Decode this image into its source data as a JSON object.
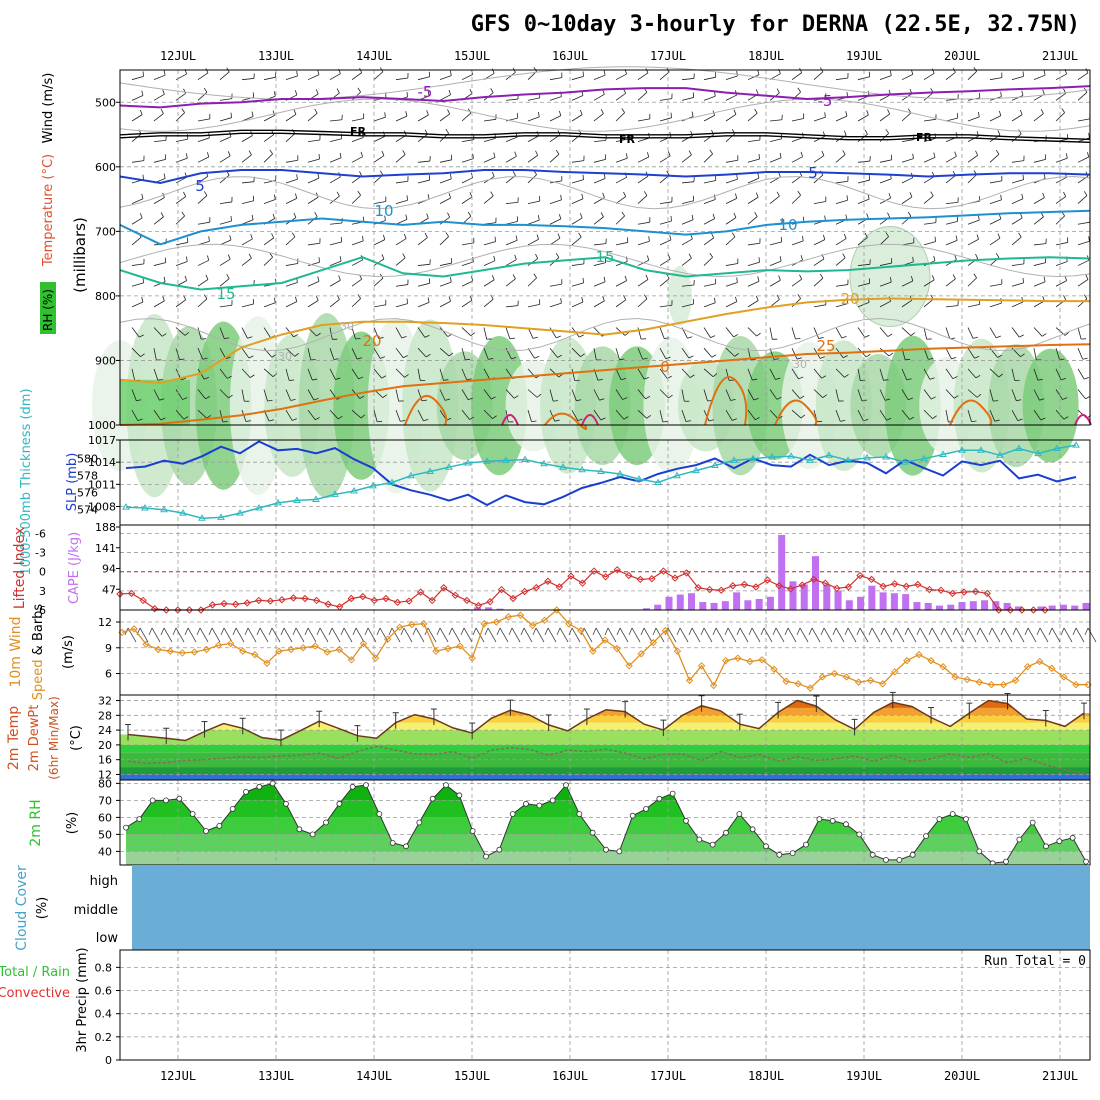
{
  "title": "GFS 0~10day 3-hourly for DERNA (22.5E, 32.75N)",
  "colors": {
    "grid": "#9a9a9a",
    "temp_colors": [
      "#8b1fb0",
      "#000000",
      "#1f3fd0",
      "#1e90d0",
      "#20b890",
      "#e0a020",
      "#e07010",
      "#d0207a"
    ],
    "slp": "#1a3fd0",
    "thickness": "#30b8c0",
    "lifted_index": "#d03030",
    "cape": "#c070f0",
    "wind10m": "#e09020",
    "rh_fill": "#30c030",
    "cloud": "#6aaed8",
    "temp_fill": "#f09020"
  },
  "chart_data": [
    {
      "type": "line",
      "panel": "pressure-level cross section",
      "title": "GFS 0~10day 3-hourly for DERNA (22.5E, 32.75N)",
      "x_tick_labels": [
        "12JUL",
        "13JUL",
        "14JUL",
        "15JUL",
        "16JUL",
        "17JUL",
        "18JUL",
        "19JUL",
        "20JUL",
        "21JUL"
      ],
      "ylabel": "(millibars)",
      "ylabel_parts": [
        "RH (%)",
        "Temperature (°C)",
        "Wind (m/s)"
      ],
      "y_ticks": [
        500,
        600,
        700,
        800,
        900,
        1000
      ],
      "ylim": [
        1000,
        450
      ],
      "contour_labels": [
        "-5",
        "-5",
        "FR",
        "FR",
        "FR",
        "5",
        "5",
        "10",
        "10",
        "15",
        "15",
        "20",
        "20",
        "25",
        "30",
        "30",
        "30",
        "0"
      ],
      "series": [
        {
          "name": "-5",
          "level_mb": [
            505,
            508,
            502,
            500,
            495,
            495,
            492,
            495,
            498,
            492,
            488,
            485,
            480,
            478,
            478,
            485,
            490,
            495,
            492,
            488,
            485,
            483,
            480,
            478,
            475
          ]
        },
        {
          "name": "FR",
          "level_mb": [
            555,
            552,
            552,
            548,
            548,
            550,
            552,
            552,
            555,
            555,
            552,
            552,
            555,
            555,
            555,
            552,
            552,
            555,
            558,
            558,
            555,
            555,
            558,
            560,
            562
          ]
        },
        {
          "name": "5",
          "level_mb": [
            615,
            625,
            610,
            605,
            605,
            610,
            615,
            612,
            610,
            605,
            605,
            608,
            610,
            612,
            615,
            612,
            608,
            608,
            610,
            612,
            615,
            612,
            610,
            610,
            612
          ]
        },
        {
          "name": "10",
          "level_mb": [
            690,
            720,
            700,
            690,
            685,
            680,
            685,
            690,
            685,
            690,
            690,
            692,
            695,
            700,
            705,
            700,
            690,
            685,
            682,
            680,
            678,
            675,
            672,
            670,
            668
          ]
        },
        {
          "name": "15",
          "level_mb": [
            760,
            780,
            790,
            785,
            780,
            760,
            740,
            765,
            770,
            760,
            750,
            745,
            740,
            760,
            770,
            765,
            760,
            762,
            760,
            755,
            750,
            745,
            742,
            740,
            742
          ]
        },
        {
          "name": "20",
          "level_mb": [
            930,
            935,
            920,
            880,
            860,
            845,
            840,
            840,
            842,
            845,
            850,
            855,
            860,
            852,
            840,
            828,
            818,
            810,
            806,
            804,
            805,
            806,
            807,
            808,
            808
          ]
        },
        {
          "name": "25",
          "level_mb": [
            1000,
            998,
            992,
            985,
            975,
            962,
            950,
            940,
            935,
            930,
            925,
            920,
            915,
            910,
            905,
            900,
            895,
            890,
            888,
            885,
            882,
            880,
            878,
            876,
            875
          ]
        }
      ]
    },
    {
      "type": "line",
      "panel": "thickness and SLP",
      "ylabel_left": "1000-500mb Thickness (dm)",
      "ylabel_right": "SLP (mb)",
      "left_ticks": [
        574,
        576,
        578,
        580
      ],
      "right_ticks": [
        1008,
        1011,
        1014,
        1017
      ],
      "series": [
        {
          "name": "SLP (mb)",
          "axis": "right",
          "values": [
            1013.2,
            1013.4,
            1014.2,
            1013.8,
            1014.8,
            1016.1,
            1015.2,
            1016.8,
            1015.6,
            1015.8,
            1015.2,
            1015.9,
            1014.4,
            1013.2,
            1011.0,
            1010.2,
            1009.6,
            1008.8,
            1009.6,
            1008.2,
            1009.5,
            1008.6,
            1008.3,
            1009.3,
            1010.5,
            1011.2,
            1012.0,
            1011.4,
            1012.4,
            1013.1,
            1013.6,
            1014.5,
            1013.2,
            1014.5,
            1013.6,
            1013.4,
            1015.0,
            1013.6,
            1014.2,
            1013.9,
            1012.5,
            1014.3,
            1013.2,
            1012.2,
            1014.1,
            1013.6,
            1014.2,
            1011.8,
            1012.3,
            1011.4,
            1012.0
          ]
        },
        {
          "name": "1000-500mb Thickness (dm)",
          "axis": "left",
          "values": [
            574.3,
            574.2,
            574.0,
            573.6,
            573.0,
            573.1,
            573.6,
            574.2,
            574.8,
            575.1,
            575.2,
            575.8,
            576.2,
            576.8,
            577.2,
            578.0,
            578.5,
            579.0,
            579.5,
            579.7,
            579.8,
            579.9,
            579.4,
            579.0,
            578.7,
            578.5,
            578.2,
            577.6,
            577.2,
            578.0,
            578.6,
            579.2,
            579.8,
            580.0,
            580.2,
            580.3,
            579.8,
            580.4,
            579.8,
            580.1,
            580.2,
            579.6,
            580.0,
            580.5,
            581.0,
            581.0,
            580.4,
            581.2,
            580.6,
            581.2,
            581.6
          ]
        }
      ]
    },
    {
      "type": "bar",
      "panel": "stability",
      "ylabel_left": "Lifted Index",
      "ylabel_right": "CAPE (J/kg)",
      "li_ticks": [
        "-6",
        "-3",
        "0",
        "3",
        "6"
      ],
      "cape_ticks": [
        47,
        94,
        141,
        188
      ],
      "series": [
        {
          "name": "Lifted Index",
          "values": [
            3.5,
            3.4,
            4.5,
            5.8,
            6.5,
            6.4,
            6.2,
            6.2,
            5.2,
            5.0,
            5.1,
            4.9,
            4.5,
            4.6,
            4.4,
            4.1,
            4.2,
            4.5,
            5.1,
            5.5,
            4.2,
            3.9,
            4.5,
            4.2,
            4.8,
            4.6,
            3.2,
            4.5,
            2.5,
            3.7,
            4.5,
            5.3,
            4.7,
            2.8,
            4.2,
            3.1,
            2.5,
            1.5,
            2.4,
            0.7,
            1.8,
            -0.1,
            0.8,
            -0.3,
            0.6,
            1.2,
            1.1,
            -0.1,
            1.0,
            0.2,
            2.5,
            2.8,
            2.9,
            2.2,
            2.0,
            2.4,
            1.3,
            2.2,
            2.7,
            2.1,
            1.2,
            1.8,
            2.6,
            2.4,
            0.6,
            1.2,
            2.3,
            1.9,
            2.3,
            2.0,
            2.8,
            2.9,
            3.4,
            3.2,
            3.1,
            3.4,
            6.5,
            6.5,
            6.5,
            6.5,
            6.5
          ]
        },
        {
          "name": "CAPE (J/kg)",
          "values": [
            0,
            0,
            0,
            0,
            0,
            0,
            0,
            0,
            0,
            0,
            0,
            0,
            0,
            0,
            0,
            0,
            0,
            0,
            0,
            0,
            0,
            0,
            0,
            0,
            0,
            0,
            0,
            0,
            0,
            0,
            2,
            6,
            6,
            3,
            0,
            0,
            0,
            0,
            0,
            0,
            0,
            0,
            0,
            0,
            0,
            0,
            4,
            12,
            30,
            35,
            38,
            18,
            16,
            20,
            40,
            22,
            25,
            30,
            170,
            65,
            58,
            122,
            58,
            44,
            22,
            30,
            55,
            40,
            38,
            36,
            18,
            16,
            10,
            12,
            18,
            20,
            22,
            20,
            16,
            8,
            2,
            8,
            10,
            12,
            10,
            16
          ]
        }
      ]
    },
    {
      "type": "line",
      "panel": "10m wind",
      "ylabel": "10m Wind Speed & Barbs (m/s)",
      "y_ticks": [
        6,
        9,
        12
      ],
      "series": [
        {
          "name": "10m Wind Speed",
          "values": [
            10.8,
            11.2,
            9.4,
            8.8,
            8.6,
            8.4,
            8.5,
            8.8,
            9.3,
            9.5,
            8.6,
            8.2,
            7.2,
            8.6,
            8.8,
            9.0,
            9.2,
            8.5,
            8.8,
            7.6,
            9.5,
            7.8,
            10.0,
            11.4,
            11.7,
            11.8,
            8.6,
            8.9,
            9.2,
            7.8,
            11.8,
            12.0,
            12.6,
            12.8,
            11.6,
            12.2,
            13.4,
            11.8,
            11.0,
            8.6,
            9.9,
            8.9,
            6.9,
            8.3,
            9.6,
            11.0,
            8.6,
            5.2,
            6.9,
            4.6,
            7.5,
            7.8,
            7.4,
            7.6,
            6.5,
            5.1,
            4.8,
            4.3,
            5.6,
            6.0,
            5.6,
            5.0,
            5.2,
            4.8,
            6.2,
            7.5,
            8.2,
            7.5,
            6.8,
            5.6,
            5.3,
            5.0,
            4.7,
            4.7,
            5.2,
            6.8,
            7.4,
            6.6,
            5.6,
            4.7,
            4.7
          ]
        }
      ]
    },
    {
      "type": "area",
      "panel": "2m temperature",
      "ylabel": "2m Temp 2m DewPt (6hr Min/Max) (°C)",
      "y_ticks": [
        12,
        16,
        20,
        24,
        28,
        32
      ],
      "series": [
        {
          "name": "2m Temp",
          "values": [
            22.8,
            22.3,
            21.8,
            21.2,
            23.6,
            25.8,
            24.5,
            22.0,
            21.3,
            23.8,
            26.4,
            24.5,
            22.5,
            21.8,
            26.0,
            28.2,
            27.0,
            24.6,
            23.2,
            27.2,
            29.4,
            28.1,
            25.4,
            23.8,
            27.0,
            29.5,
            29.0,
            25.6,
            24.0,
            28.0,
            30.6,
            29.2,
            25.6,
            24.4,
            28.8,
            32.0,
            30.5,
            26.8,
            24.2,
            28.8,
            31.5,
            30.4,
            27.4,
            25.0,
            28.6,
            32.0,
            31.2,
            27.0,
            26.6,
            25.0,
            28.6
          ]
        },
        {
          "name": "2m DewPt",
          "values": [
            15.6,
            15.0,
            15.2,
            15.8,
            16.0,
            16.4,
            16.8,
            16.6,
            17.0,
            17.2,
            17.8,
            16.4,
            18.2,
            19.6,
            18.6,
            17.6,
            17.4,
            18.2,
            16.4,
            18.6,
            19.2,
            18.8,
            17.2,
            18.6,
            18.2,
            18.8,
            17.8,
            16.2,
            17.4,
            17.6,
            15.8,
            18.2,
            16.6,
            17.4,
            15.6,
            16.8,
            15.8,
            16.2,
            17.0,
            15.6,
            17.2,
            15.5,
            16.2,
            17.6,
            16.6,
            17.6,
            15.2,
            16.4,
            14.6,
            13.2,
            12.2
          ]
        }
      ]
    },
    {
      "type": "area",
      "panel": "2m relative humidity",
      "ylabel": "2m RH (%)",
      "y_ticks": [
        40,
        50,
        60,
        70,
        80
      ],
      "series": [
        {
          "name": "2m RH",
          "values": [
            54,
            59,
            70,
            70,
            71,
            62,
            52,
            55,
            65,
            75,
            78,
            80,
            68,
            53,
            50,
            57,
            68,
            78,
            79,
            62,
            45,
            43,
            57,
            71,
            79,
            73,
            52,
            37,
            41,
            62,
            68,
            67,
            70,
            79,
            62,
            51,
            41,
            40,
            61,
            65,
            71,
            74,
            58,
            47,
            44,
            51,
            62,
            53,
            43,
            38,
            39,
            44,
            59,
            58,
            56,
            50,
            38,
            35,
            35,
            38,
            49,
            59,
            62,
            59,
            40,
            33,
            34,
            47,
            57,
            43,
            46,
            48,
            34
          ]
        }
      ]
    },
    {
      "type": "area",
      "panel": "cloud cover",
      "ylabel": "Cloud Cover (%)",
      "levels": [
        "high",
        "middle",
        "low"
      ]
    },
    {
      "type": "bar",
      "panel": "precipitation",
      "ylabel": "3hr Precip (mm)",
      "legend": [
        "Total / Rain",
        "Convective"
      ],
      "y_ticks": [
        "0",
        "0.2",
        "0.4",
        "0.6",
        "0.8"
      ],
      "annotation": "Run Total = 0",
      "values": []
    }
  ]
}
